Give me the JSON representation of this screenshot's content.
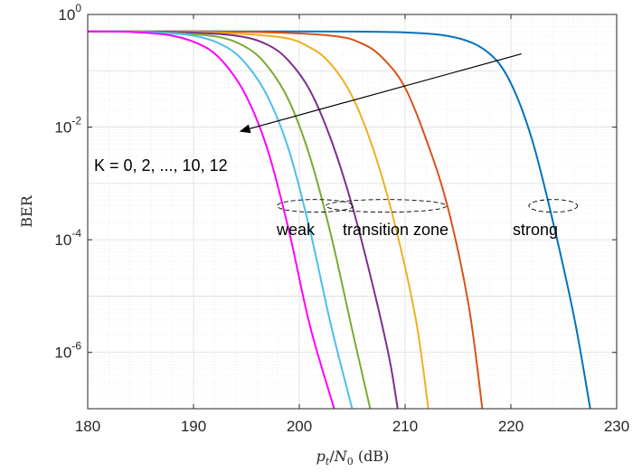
{
  "chart_data": {
    "type": "line",
    "xlabel": {
      "base": "p",
      "base_sub": "t",
      "slash": "/",
      "denom": "N",
      "denom_sub": "0",
      "unit": " (dB)"
    },
    "ylabel": "BER",
    "x_ticks": [
      "180",
      "190",
      "200",
      "210",
      "220",
      "230"
    ],
    "y_ticks": [
      {
        "base": "10",
        "exp": "0"
      },
      {
        "base": "10",
        "exp": "-2"
      },
      {
        "base": "10",
        "exp": "-4"
      },
      {
        "base": "10",
        "exp": "-6"
      }
    ],
    "xlim": [
      180,
      230
    ],
    "ylim": [
      1e-07,
      1
    ],
    "y_scale": "log",
    "grid": true,
    "series": [
      {
        "color": "#0072BD",
        "x": [
          180,
          200,
          210,
          215,
          218,
          220,
          222,
          224,
          226,
          227.5
        ],
        "y": [
          0.5,
          0.5,
          0.48,
          0.38,
          0.2,
          0.06,
          0.006,
          0.0002,
          4e-06,
          1e-07
        ]
      },
      {
        "color": "#D95319",
        "x": [
          180,
          195,
          203,
          206,
          208,
          210,
          212,
          214,
          216,
          217.3
        ],
        "y": [
          0.5,
          0.49,
          0.42,
          0.3,
          0.16,
          0.05,
          0.006,
          0.0004,
          7e-06,
          1e-07
        ]
      },
      {
        "color": "#EDB120",
        "x": [
          180,
          190,
          198,
          201,
          203,
          205,
          207,
          209,
          211,
          212.2
        ],
        "y": [
          0.5,
          0.49,
          0.4,
          0.26,
          0.13,
          0.035,
          0.004,
          0.0002,
          4e-06,
          1e-07
        ]
      },
      {
        "color": "#7E2F8E",
        "x": [
          180,
          188,
          194,
          197,
          199,
          201,
          203,
          205,
          207,
          208.5,
          209.3
        ],
        "y": [
          0.5,
          0.49,
          0.42,
          0.29,
          0.15,
          0.045,
          0.006,
          0.0004,
          1.4e-05,
          8e-07,
          1e-07
        ]
      },
      {
        "color": "#77AC30",
        "x": [
          180,
          186,
          192,
          195,
          197,
          199,
          201,
          203,
          205,
          206.7
        ],
        "y": [
          0.5,
          0.49,
          0.41,
          0.26,
          0.12,
          0.03,
          0.003,
          0.00012,
          2.5e-06,
          1e-07
        ]
      },
      {
        "color": "#4DBEEE",
        "x": [
          180,
          185,
          190,
          193,
          195,
          197,
          199,
          201,
          203,
          205
        ],
        "y": [
          0.5,
          0.49,
          0.42,
          0.27,
          0.13,
          0.035,
          0.004,
          0.00015,
          3e-06,
          1e-07
        ]
      },
      {
        "color": "#FF00FF",
        "x": [
          180,
          184,
          188,
          191,
          193,
          195,
          197,
          199,
          201,
          203.3
        ],
        "y": [
          0.5,
          0.49,
          0.42,
          0.27,
          0.13,
          0.035,
          0.004,
          0.00015,
          3e-06,
          1e-07
        ]
      }
    ],
    "annotations": {
      "arrow_label": "K = 0, 2, ..., 10, 12",
      "zone_labels": [
        "weak",
        "transition zone",
        "strong"
      ],
      "arrow": {
        "from": [
          221,
          0.2
        ],
        "to": [
          194.5,
          0.0085
        ]
      },
      "ellipses": [
        {
          "cx": 201.5,
          "cy": 0.0004,
          "rx_data": 3.6
        },
        {
          "cx": 208.2,
          "cy": 0.0004,
          "rx_data": 5.7
        },
        {
          "cx": 224.0,
          "cy": 0.0004,
          "rx_data": 2.3
        }
      ]
    }
  }
}
